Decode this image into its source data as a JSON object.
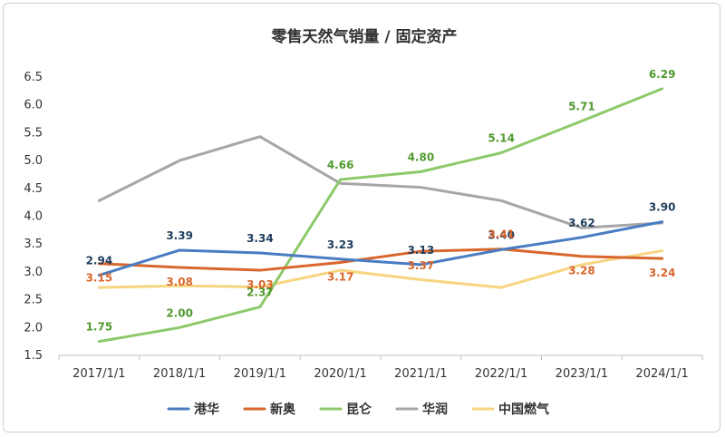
{
  "chart_data": {
    "type": "line",
    "title": "零售天然气销量 / 固定资产",
    "xlabel": "",
    "ylabel": "",
    "categories": [
      "2017/1/1",
      "2018/1/1",
      "2019/1/1",
      "2020/1/1",
      "2021/1/1",
      "2022/1/1",
      "2023/1/1",
      "2024/1/1"
    ],
    "ylim": [
      1.5,
      6.5
    ],
    "yticks": [
      "1.5",
      "2.0",
      "2.5",
      "3.0",
      "3.5",
      "4.0",
      "4.5",
      "5.0",
      "5.5",
      "6.0",
      "6.5"
    ],
    "grid": false,
    "legend": "bottom",
    "series": [
      {
        "name": "港华",
        "color": "#4a7cc2",
        "label_color": "#1f3d5c",
        "values": [
          2.94,
          3.39,
          3.34,
          3.23,
          3.13,
          3.4,
          3.62,
          3.9
        ],
        "labels": [
          "2.94",
          "3.39",
          "3.34",
          "3.23",
          "3.13",
          "3.40",
          "3.62",
          "3.90"
        ]
      },
      {
        "name": "新奥",
        "color": "#d9662d",
        "label_color": "#d9662d",
        "values": [
          3.15,
          3.08,
          3.03,
          3.17,
          3.37,
          3.41,
          3.28,
          3.24
        ],
        "labels": [
          "3.15",
          "3.08",
          "3.03",
          "3.17",
          "3.37",
          "3.41",
          "3.28",
          "3.24"
        ]
      },
      {
        "name": "昆仑",
        "color": "#8cc96a",
        "label_color": "#4f9a2e",
        "values": [
          1.75,
          2.0,
          2.37,
          4.66,
          4.8,
          5.14,
          5.71,
          6.29
        ],
        "labels": [
          "1.75",
          "2.00",
          "2.37",
          "4.66",
          "4.80",
          "5.14",
          "5.71",
          "6.29"
        ]
      },
      {
        "name": "华润",
        "color": "#a6a6a6",
        "values": [
          4.28,
          5.0,
          5.43,
          4.59,
          4.52,
          4.28,
          3.79,
          3.88
        ],
        "labels": []
      },
      {
        "name": "中国燃气",
        "color": "#f7d580",
        "values": [
          2.72,
          2.75,
          2.73,
          3.03,
          2.86,
          2.72,
          3.13,
          3.38
        ],
        "labels": []
      }
    ]
  }
}
